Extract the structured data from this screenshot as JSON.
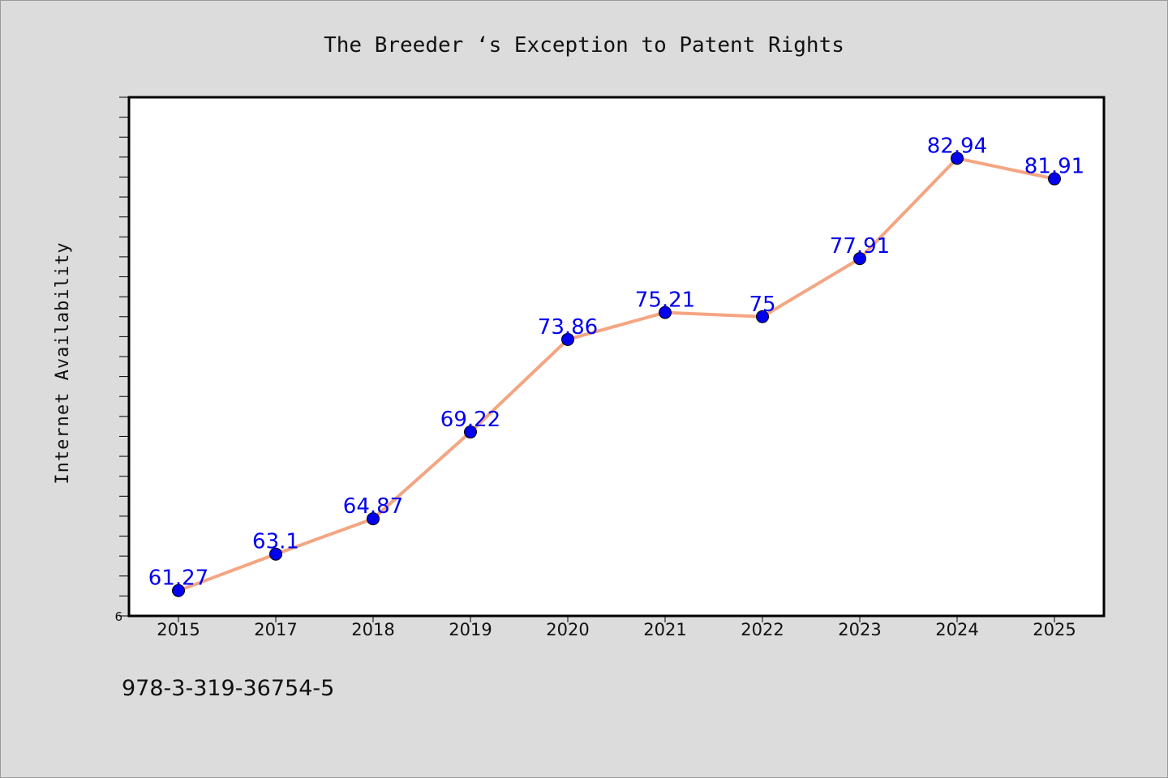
{
  "chart_data": {
    "type": "line",
    "title": "The Breeder ‘s Exception to Patent Rights",
    "xlabel": "",
    "ylabel": "Internet Availability",
    "categories": [
      "2015",
      "2017",
      "2018",
      "2019",
      "2020",
      "2021",
      "2022",
      "2023",
      "2024",
      "2025"
    ],
    "series": [
      {
        "values": [
          61.27,
          63.1,
          64.87,
          69.22,
          73.86,
          75.21,
          75,
          77.91,
          82.94,
          81.91
        ],
        "labels": [
          "61.27",
          "63.1",
          "64.87",
          "69.22",
          "73.86",
          "75.21",
          "75",
          "77.91",
          "82.94",
          "81.91"
        ]
      }
    ],
    "ylim": [
      60,
      86
    ],
    "yticks_labeled": [
      "6"
    ],
    "grid": false,
    "legend": "none",
    "colors": {
      "line": "#f4a582",
      "marker": "#0000ee",
      "data_label": "#0000ee",
      "background": "#dcdcdc",
      "plot_area": "#ffffff"
    }
  },
  "footer": {
    "code": "978-3-319-36754-5"
  }
}
